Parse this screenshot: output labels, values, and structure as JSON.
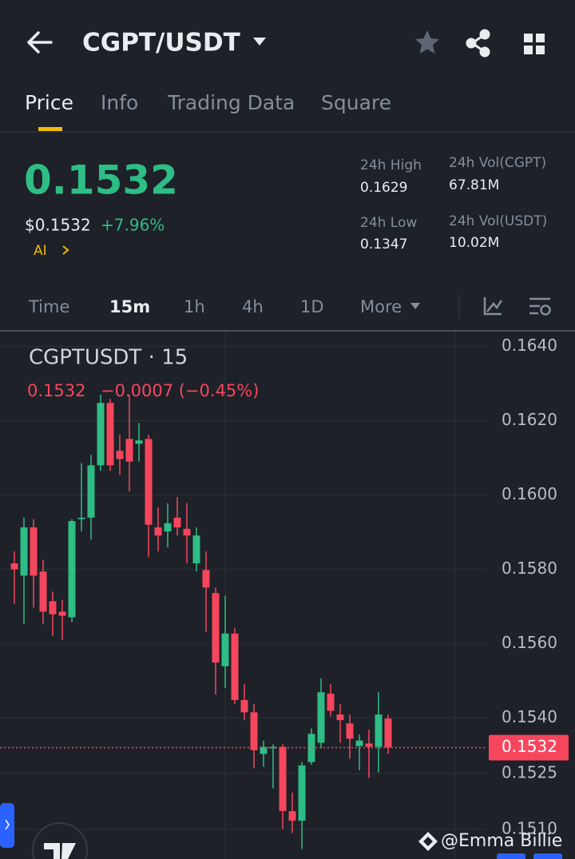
{
  "header": {
    "pair": "CGPT/USDT"
  },
  "tabs": [
    "Price",
    "Info",
    "Trading Data",
    "Square"
  ],
  "ticker": {
    "price": "0.1532",
    "price_usd": "$0.1532",
    "change": "+7.96%",
    "ai": "AI",
    "stats": [
      {
        "label": "24h High",
        "value": "0.1629"
      },
      {
        "label": "24h Vol(CGPT)",
        "value": "67.81M"
      },
      {
        "label": "24h Low",
        "value": "0.1347"
      },
      {
        "label": "24h Vol(USDT)",
        "value": "10.02M"
      }
    ]
  },
  "intervals": [
    "Time",
    "15m",
    "1h",
    "4h",
    "1D",
    "More"
  ],
  "chart_data": {
    "type": "candlestick",
    "title": "CGPTUSDT · 15",
    "legend_price": "0.1532",
    "legend_change": "−0.0007 (−0.45%)",
    "up_color": "#2ebd85",
    "down_color": "#f6465d",
    "ylim": [
      0.1502,
      0.1644
    ],
    "yticks": [
      {
        "value": 0.164,
        "label": "0.1640"
      },
      {
        "value": 0.162,
        "label": "0.1620"
      },
      {
        "value": 0.16,
        "label": "0.1600"
      },
      {
        "value": 0.158,
        "label": "0.1580"
      },
      {
        "value": 0.156,
        "label": "0.1560"
      },
      {
        "value": 0.154,
        "label": "0.1540"
      },
      {
        "value": 0.1525,
        "label": "0.1525"
      },
      {
        "value": 0.151,
        "label": "0.1510"
      }
    ],
    "last_price": {
      "value": 0.1532,
      "label": "0.1532"
    },
    "candles": [
      {
        "open": 0.15816,
        "high": 0.15848,
        "low": 0.15707,
        "close": 0.158
      },
      {
        "open": 0.15783,
        "high": 0.15939,
        "low": 0.15653,
        "close": 0.15913
      },
      {
        "open": 0.15913,
        "high": 0.15935,
        "low": 0.15697,
        "close": 0.15783
      },
      {
        "open": 0.15794,
        "high": 0.15826,
        "low": 0.15653,
        "close": 0.15686
      },
      {
        "open": 0.15714,
        "high": 0.1574,
        "low": 0.15621,
        "close": 0.15679
      },
      {
        "open": 0.15686,
        "high": 0.15718,
        "low": 0.1561,
        "close": 0.15675
      },
      {
        "open": 0.15671,
        "high": 0.15935,
        "low": 0.15658,
        "close": 0.1593
      },
      {
        "open": 0.15935,
        "high": 0.16086,
        "low": 0.15902,
        "close": 0.15939
      },
      {
        "open": 0.15939,
        "high": 0.16108,
        "low": 0.1588,
        "close": 0.1608
      },
      {
        "open": 0.1608,
        "high": 0.1627,
        "low": 0.16065,
        "close": 0.16248
      },
      {
        "open": 0.16248,
        "high": 0.16259,
        "low": 0.16065,
        "close": 0.1608
      },
      {
        "open": 0.16119,
        "high": 0.16162,
        "low": 0.16054,
        "close": 0.16097
      },
      {
        "open": 0.16151,
        "high": 0.1627,
        "low": 0.1601,
        "close": 0.1609
      },
      {
        "open": 0.16138,
        "high": 0.16194,
        "low": 0.1609,
        "close": 0.16147
      },
      {
        "open": 0.16151,
        "high": 0.16162,
        "low": 0.15833,
        "close": 0.1592
      },
      {
        "open": 0.15913,
        "high": 0.15967,
        "low": 0.15848,
        "close": 0.15891
      },
      {
        "open": 0.15902,
        "high": 0.15978,
        "low": 0.15859,
        "close": 0.15924
      },
      {
        "open": 0.15939,
        "high": 0.15995,
        "low": 0.15891,
        "close": 0.15913
      },
      {
        "open": 0.15909,
        "high": 0.15978,
        "low": 0.15816,
        "close": 0.15891
      },
      {
        "open": 0.15816,
        "high": 0.15913,
        "low": 0.15794,
        "close": 0.15891
      },
      {
        "open": 0.15798,
        "high": 0.15848,
        "low": 0.15632,
        "close": 0.15751
      },
      {
        "open": 0.15736,
        "high": 0.15751,
        "low": 0.15463,
        "close": 0.15549
      },
      {
        "open": 0.15539,
        "high": 0.15729,
        "low": 0.1548,
        "close": 0.15627
      },
      {
        "open": 0.15627,
        "high": 0.15642,
        "low": 0.15437,
        "close": 0.15448
      },
      {
        "open": 0.15448,
        "high": 0.15491,
        "low": 0.15394,
        "close": 0.15415
      },
      {
        "open": 0.15415,
        "high": 0.15437,
        "low": 0.15264,
        "close": 0.15313
      },
      {
        "open": 0.15303,
        "high": 0.15339,
        "low": 0.15268,
        "close": 0.15322
      },
      {
        "open": 0.15318,
        "high": 0.15329,
        "low": 0.1521,
        "close": 0.15322
      },
      {
        "open": 0.15322,
        "high": 0.15329,
        "low": 0.15101,
        "close": 0.15149
      },
      {
        "open": 0.15149,
        "high": 0.15199,
        "low": 0.1509,
        "close": 0.15123
      },
      {
        "open": 0.15123,
        "high": 0.15281,
        "low": 0.15047,
        "close": 0.15272
      },
      {
        "open": 0.15281,
        "high": 0.15372,
        "low": 0.15274,
        "close": 0.15357
      },
      {
        "open": 0.15333,
        "high": 0.15506,
        "low": 0.15318,
        "close": 0.15469
      },
      {
        "open": 0.15465,
        "high": 0.15491,
        "low": 0.15404,
        "close": 0.15419
      },
      {
        "open": 0.15409,
        "high": 0.15437,
        "low": 0.15333,
        "close": 0.15394
      },
      {
        "open": 0.15385,
        "high": 0.15409,
        "low": 0.1529,
        "close": 0.15344
      },
      {
        "open": 0.15324,
        "high": 0.15355,
        "low": 0.15259,
        "close": 0.15339
      },
      {
        "open": 0.15331,
        "high": 0.15368,
        "low": 0.15238,
        "close": 0.15322
      },
      {
        "open": 0.15322,
        "high": 0.15469,
        "low": 0.15253,
        "close": 0.15409
      },
      {
        "open": 0.15398,
        "high": 0.15409,
        "low": 0.15303,
        "close": 0.1532
      }
    ]
  },
  "watermark": "@Emma Billie"
}
